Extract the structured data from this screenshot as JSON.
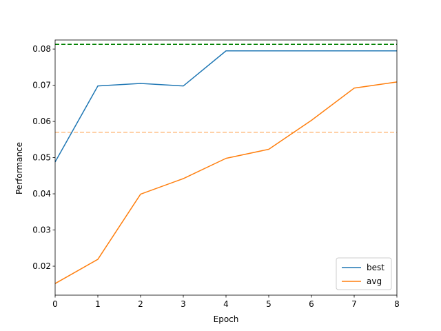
{
  "chart_data": {
    "type": "line",
    "title": "",
    "xlabel": "Epoch",
    "ylabel": "Performance",
    "xlim": [
      0,
      8
    ],
    "ylim": [
      0.012,
      0.0825
    ],
    "xticks": [
      0,
      1,
      2,
      3,
      4,
      5,
      6,
      7,
      8
    ],
    "yticks": [
      0.02,
      0.03,
      0.04,
      0.05,
      0.06,
      0.07,
      0.08
    ],
    "ytick_labels": [
      "0.02",
      "0.03",
      "0.04",
      "0.05",
      "0.06",
      "0.07",
      "0.08"
    ],
    "grid": false,
    "legend_position": "lower-right",
    "x": [
      0,
      1,
      2,
      3,
      4,
      5,
      6,
      7,
      8
    ],
    "series": [
      {
        "name": "best",
        "color": "#1f77b4",
        "values": [
          0.0488,
          0.0698,
          0.0705,
          0.0698,
          0.0795,
          0.0795,
          0.0795,
          0.0795,
          0.0795
        ]
      },
      {
        "name": "avg",
        "color": "#ff7f0e",
        "values": [
          0.0152,
          0.0219,
          0.0399,
          0.0442,
          0.0498,
          0.0523,
          0.0603,
          0.0692,
          0.0709
        ]
      }
    ],
    "reference_lines": [
      {
        "y": 0.0813,
        "color": "#008000",
        "style": "dashed"
      },
      {
        "y": 0.057,
        "color": "#ff7f0e",
        "opacity": 0.5,
        "style": "dashed"
      }
    ]
  }
}
